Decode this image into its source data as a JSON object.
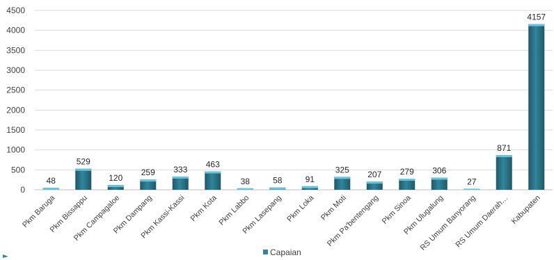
{
  "chart_data": {
    "type": "bar",
    "categories": [
      "Pkm Baruga",
      "Pkm Bissappu",
      "Pkm Campagaloe",
      "Pkm Dampang",
      "Pkm Kassi-Kassi",
      "Pkm Kota",
      "Pkm Labbo",
      "Pkm Lasepang",
      "Pkm Loka",
      "Pkm Moti",
      "Pkm Pa'bentengang",
      "Pkm Sinoa",
      "Pkm Ulugalung",
      "RS Umum Banyorang",
      "RS Umum Daerah…",
      "Kabupaten"
    ],
    "series": [
      {
        "name": "Capaian",
        "values": [
          48,
          529,
          120,
          259,
          333,
          463,
          38,
          58,
          91,
          325,
          207,
          279,
          306,
          27,
          871,
          4157
        ]
      }
    ],
    "yticks": [
      0,
      500,
      1000,
      1500,
      2000,
      2500,
      3000,
      3500,
      4000,
      4500
    ],
    "ylim": [
      0,
      4500
    ],
    "grid": true,
    "legend_position": "bottom",
    "colors": {
      "bar": "#31859c",
      "bar_top": "#6cc4da",
      "bar_dark": "#205867",
      "legend_swatch": "#31859c"
    }
  }
}
